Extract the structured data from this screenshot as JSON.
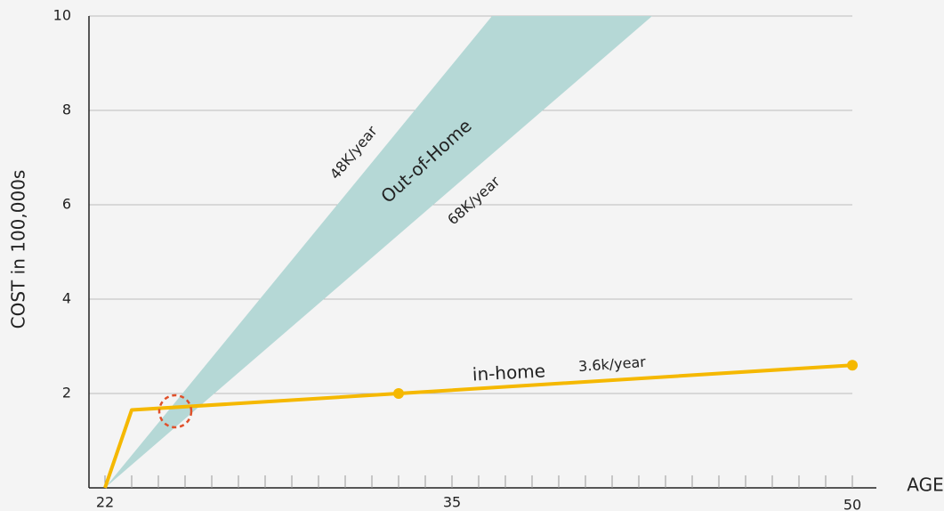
{
  "chart_data": {
    "type": "line",
    "xlabel": "AGE",
    "ylabel": "COST  in 100,000s",
    "xlim": [
      21.4,
      50
    ],
    "ylim": [
      0,
      10
    ],
    "xticks": [
      22,
      35,
      50
    ],
    "xminor": [
      23,
      24,
      25,
      26,
      27,
      28,
      29,
      30,
      31,
      32,
      33,
      34,
      35,
      36,
      37,
      38,
      39,
      40,
      41,
      42,
      43,
      44,
      45,
      46,
      47,
      48,
      49
    ],
    "yticks": [
      2,
      4,
      6,
      8,
      10
    ],
    "grid": true,
    "band": {
      "name": "Out-of-Home",
      "color": "#b5d8d6",
      "x": [
        22,
        36.5,
        42.5
      ],
      "values": [
        0,
        10,
        10
      ],
      "edge_labels": [
        "48K/year",
        "68K/year"
      ]
    },
    "series": [
      {
        "name": "in-home",
        "rate_label": "3.6k/year",
        "color": "#f5b800",
        "x": [
          22,
          23,
          33,
          50
        ],
        "values": [
          0,
          1.65,
          2,
          2.6
        ],
        "markers": [
          2,
          3
        ]
      }
    ]
  }
}
